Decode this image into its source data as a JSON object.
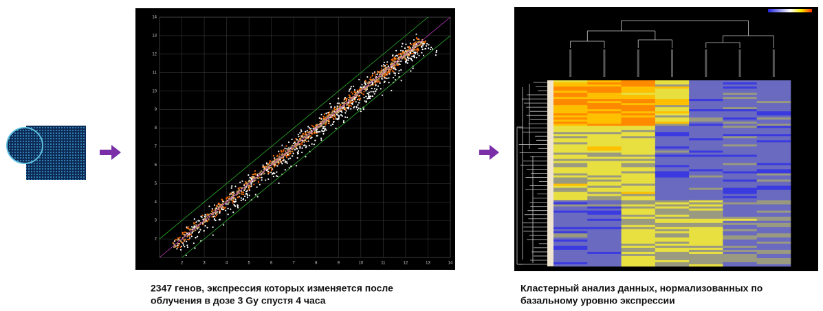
{
  "scatter": {
    "xticks": [
      2,
      3,
      4,
      5,
      6,
      7,
      8,
      9,
      10,
      11,
      12,
      13,
      14
    ],
    "yticks": [
      2,
      3,
      4,
      5,
      6,
      7,
      8,
      9,
      10,
      11,
      12,
      13,
      14
    ],
    "xlim": [
      1,
      14
    ],
    "ylim": [
      1,
      14
    ]
  },
  "captions": {
    "left": [
      "2347 генов, экспрессия которых изменяется после",
      "облучения в дозе 3 Gy спустя 4 часа"
    ],
    "right": [
      "Кластерный анализ данных, нормализованных по",
      "базальному уровню экспрессии"
    ]
  }
}
